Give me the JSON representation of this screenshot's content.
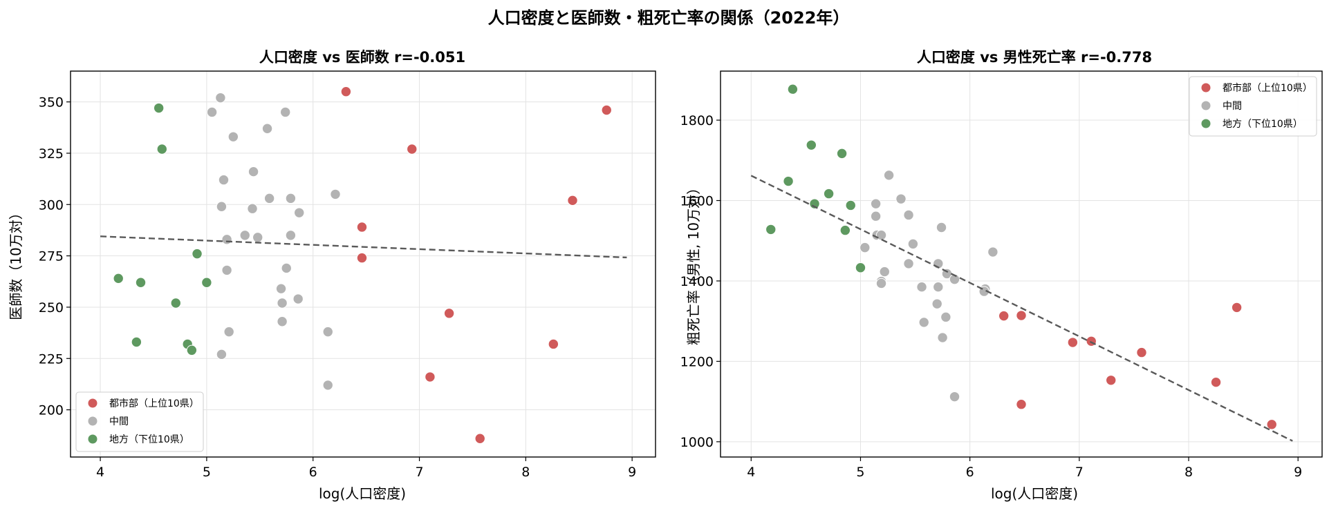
{
  "figure": {
    "suptitle": "人口密度と医師数・粗死亡率の関係（2022年）"
  },
  "colors": {
    "urban": "#d05a5a",
    "middle": "#b3b3b3",
    "rural": "#5e9960",
    "trend": "#595959",
    "grid": "#e3e3e3"
  },
  "legend_labels": [
    "都市部（上位10県）",
    "中間",
    "地方（下位10県）"
  ],
  "chart_data": [
    {
      "type": "scatter",
      "title": "人口密度 vs 医師数  r=-0.051",
      "xlabel": "log(人口密度)",
      "ylabel": "医師数（10万対）",
      "xlim": [
        3.72,
        9.22
      ],
      "ylim": [
        177,
        365
      ],
      "xticks": [
        4,
        5,
        6,
        7,
        8,
        9
      ],
      "yticks": [
        200,
        225,
        250,
        275,
        300,
        325,
        350
      ],
      "legend_position": "lower-left",
      "grid": true,
      "trendline": {
        "x": [
          4.0,
          8.95
        ],
        "y": [
          284.5,
          274.2
        ],
        "style": "dashed"
      },
      "series": [
        {
          "name": "都市部（上位10県）",
          "color": "#d05a5a",
          "points": [
            [
              6.31,
              355
            ],
            [
              8.76,
              346
            ],
            [
              6.93,
              327
            ],
            [
              8.44,
              302
            ],
            [
              6.46,
              289
            ],
            [
              6.46,
              274
            ],
            [
              7.28,
              247
            ],
            [
              8.26,
              232
            ],
            [
              7.1,
              216
            ],
            [
              7.57,
              186
            ]
          ]
        },
        {
          "name": "中間",
          "color": "#b3b3b3",
          "points": [
            [
              5.13,
              352
            ],
            [
              5.05,
              345
            ],
            [
              5.74,
              345
            ],
            [
              5.57,
              337
            ],
            [
              5.25,
              333
            ],
            [
              5.44,
              316
            ],
            [
              5.16,
              312
            ],
            [
              6.21,
              305
            ],
            [
              5.59,
              303
            ],
            [
              5.79,
              303
            ],
            [
              5.14,
              299
            ],
            [
              5.43,
              298
            ],
            [
              5.87,
              296
            ],
            [
              5.36,
              285
            ],
            [
              5.48,
              284
            ],
            [
              5.79,
              285
            ],
            [
              5.19,
              283
            ],
            [
              5.75,
              269
            ],
            [
              5.19,
              268
            ],
            [
              5.7,
              259
            ],
            [
              5.86,
              254
            ],
            [
              5.71,
              252
            ],
            [
              5.71,
              243
            ],
            [
              6.14,
              238
            ],
            [
              5.21,
              238
            ],
            [
              5.14,
              227
            ],
            [
              6.14,
              212
            ]
          ]
        },
        {
          "name": "地方（下位10県）",
          "color": "#5e9960",
          "points": [
            [
              4.55,
              347
            ],
            [
              4.58,
              327
            ],
            [
              4.91,
              276
            ],
            [
              4.17,
              264
            ],
            [
              4.38,
              262
            ],
            [
              5.0,
              262
            ],
            [
              4.71,
              252
            ],
            [
              4.34,
              233
            ],
            [
              4.82,
              232
            ],
            [
              4.86,
              229
            ]
          ]
        }
      ]
    },
    {
      "type": "scatter",
      "title": "人口密度 vs 男性死亡率  r=-0.778",
      "xlabel": "log(人口密度)",
      "ylabel": "粗死亡率（男性, 10万対）",
      "xlim": [
        3.72,
        9.22
      ],
      "ylim": [
        962,
        1922
      ],
      "xticks": [
        4,
        5,
        6,
        7,
        8,
        9
      ],
      "yticks": [
        1000,
        1200,
        1400,
        1600,
        1800
      ],
      "legend_position": "upper-right",
      "grid": true,
      "trendline": {
        "x": [
          4.0,
          8.95
        ],
        "y": [
          1662,
          1002
        ],
        "style": "dashed"
      },
      "series": [
        {
          "name": "都市部（上位10県）",
          "color": "#d05a5a",
          "points": [
            [
              6.31,
              1313
            ],
            [
              6.47,
              1314
            ],
            [
              6.94,
              1247
            ],
            [
              7.11,
              1250
            ],
            [
              7.57,
              1222
            ],
            [
              7.29,
              1153
            ],
            [
              8.44,
              1334
            ],
            [
              8.25,
              1148
            ],
            [
              6.47,
              1093
            ],
            [
              8.76,
              1043
            ]
          ]
        },
        {
          "name": "中間",
          "color": "#b3b3b3",
          "points": [
            [
              5.26,
              1663
            ],
            [
              5.37,
              1604
            ],
            [
              5.14,
              1592
            ],
            [
              5.44,
              1564
            ],
            [
              5.14,
              1561
            ],
            [
              5.74,
              1533
            ],
            [
              5.15,
              1514
            ],
            [
              5.19,
              1514
            ],
            [
              5.48,
              1492
            ],
            [
              6.21,
              1472
            ],
            [
              5.04,
              1483
            ],
            [
              5.71,
              1443
            ],
            [
              5.44,
              1443
            ],
            [
              5.22,
              1423
            ],
            [
              5.79,
              1418
            ],
            [
              5.86,
              1404
            ],
            [
              5.19,
              1399
            ],
            [
              5.19,
              1394
            ],
            [
              5.56,
              1385
            ],
            [
              5.71,
              1385
            ],
            [
              6.14,
              1380
            ],
            [
              6.13,
              1374
            ],
            [
              5.7,
              1343
            ],
            [
              5.78,
              1310
            ],
            [
              5.58,
              1297
            ],
            [
              5.75,
              1259
            ],
            [
              5.86,
              1112
            ]
          ]
        },
        {
          "name": "地方（下位10県）",
          "color": "#5e9960",
          "points": [
            [
              4.38,
              1877
            ],
            [
              4.55,
              1738
            ],
            [
              4.83,
              1717
            ],
            [
              4.34,
              1648
            ],
            [
              4.71,
              1617
            ],
            [
              4.58,
              1592
            ],
            [
              4.91,
              1588
            ],
            [
              4.18,
              1528
            ],
            [
              4.86,
              1526
            ],
            [
              5.0,
              1433
            ]
          ]
        }
      ]
    }
  ]
}
